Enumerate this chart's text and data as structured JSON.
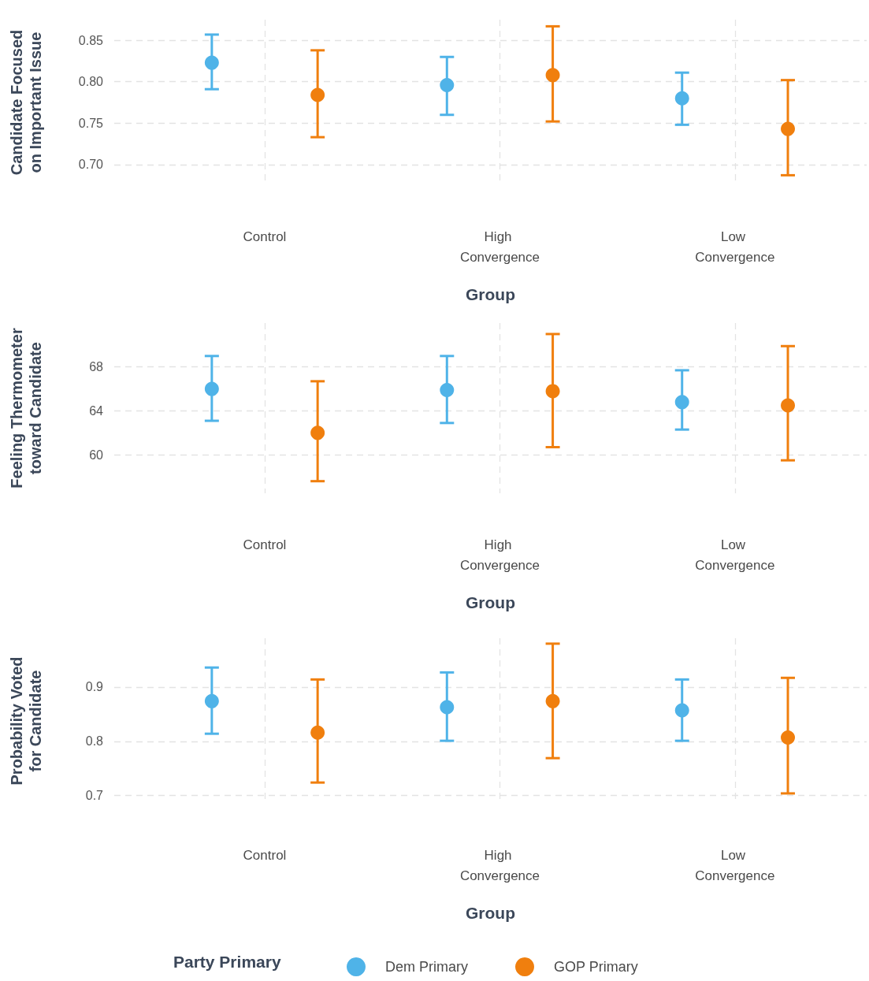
{
  "chart_data": [
    {
      "type": "scatter",
      "ylabel": "Candidate Focused on Important Issue",
      "xlabel": "Group",
      "categories": [
        "Control",
        "High Convergence",
        "Low Convergence"
      ],
      "ylim": [
        0.675,
        0.875
      ],
      "yticks": [
        {
          "value": 0.7,
          "label": "0.70"
        },
        0.75,
        {
          "value": 0.8,
          "label": "0.80"
        },
        0.85
      ],
      "grid": true,
      "legend": false,
      "marker": "circle",
      "series": [
        {
          "color": "#4fb3e8",
          "values": [
            0.823,
            0.796,
            0.78
          ],
          "errors": [
            [
              0.791,
              0.857
            ],
            [
              0.76,
              0.83
            ],
            [
              0.748,
              0.811
            ]
          ]
        },
        {
          "color": "#f07f0e",
          "values": [
            0.784,
            0.808,
            0.743
          ],
          "errors": [
            [
              0.733,
              0.838
            ],
            [
              0.752,
              0.867
            ],
            [
              0.687,
              0.802
            ]
          ]
        }
      ]
    },
    {
      "type": "scatter",
      "ylabel": "Feeling Thermometer toward Candidate",
      "xlabel": "Group",
      "categories": [
        "Control",
        "High Convergence",
        "Low Convergence"
      ],
      "ylim": [
        56.5,
        72
      ],
      "yticks": [
        60,
        64,
        68
      ],
      "grid": true,
      "legend": false,
      "marker": "circle",
      "series": [
        {
          "color": "#4fb3e8",
          "values": [
            66.0,
            65.9,
            64.8
          ],
          "errors": [
            [
              63.1,
              69.0
            ],
            [
              62.9,
              69.0
            ],
            [
              62.3,
              67.7
            ]
          ]
        },
        {
          "color": "#f07f0e",
          "values": [
            62.0,
            65.8,
            64.5
          ],
          "errors": [
            [
              57.6,
              66.7
            ],
            [
              60.7,
              71.0
            ],
            [
              59.5,
              69.9
            ]
          ]
        }
      ]
    },
    {
      "type": "scatter",
      "ylabel": "Probability Voted for Candidate",
      "xlabel": "Group",
      "categories": [
        "Control",
        "High Convergence",
        "Low Convergence"
      ],
      "ylim": [
        0.685,
        0.99
      ],
      "yticks": [
        0.7,
        0.8,
        0.9
      ],
      "grid": true,
      "legend": "bottom",
      "legend_title": "Party Primary",
      "marker": "circle",
      "series": [
        {
          "name": "Dem Primary",
          "color": "#4fb3e8",
          "values": [
            0.874,
            0.863,
            0.857
          ],
          "errors": [
            [
              0.814,
              0.936
            ],
            [
              0.801,
              0.927
            ],
            [
              0.801,
              0.914
            ]
          ]
        },
        {
          "name": "GOP Primary",
          "color": "#f07f0e",
          "values": [
            0.816,
            0.874,
            0.807
          ],
          "errors": [
            [
              0.724,
              0.914
            ],
            [
              0.769,
              0.98
            ],
            [
              0.704,
              0.917
            ]
          ]
        }
      ]
    }
  ]
}
